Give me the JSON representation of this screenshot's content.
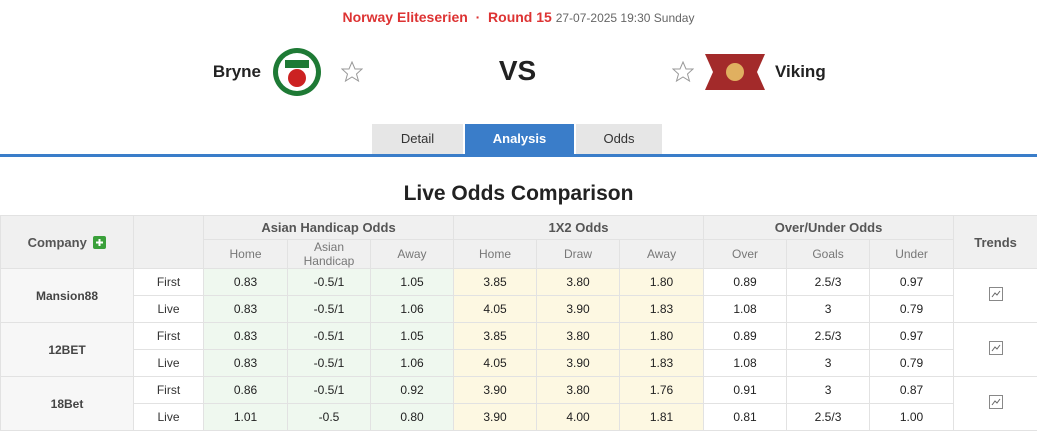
{
  "header": {
    "league": "Norway Eliteserien",
    "round": "Round 15",
    "datetime": "27-07-2025 19:30 Sunday"
  },
  "match": {
    "home": "Bryne",
    "vs": "VS",
    "away": "Viking"
  },
  "tabs": [
    "Detail",
    "Analysis",
    "Odds"
  ],
  "section_title": "Live Odds Comparison",
  "table": {
    "headers": {
      "company": "Company",
      "asian_handicap": "Asian Handicap Odds",
      "x12": "1X2 Odds",
      "over_under": "Over/Under Odds",
      "trends": "Trends"
    },
    "subheaders": [
      "Home",
      "Asian Handicap",
      "Away",
      "Home",
      "Draw",
      "Away",
      "Over",
      "Goals",
      "Under"
    ],
    "rows": [
      {
        "company": "Mansion88",
        "lines": [
          {
            "label": "First",
            "values": [
              "0.83",
              "-0.5/1",
              "1.05",
              "3.85",
              "3.80",
              "1.80",
              "0.89",
              "2.5/3",
              "0.97"
            ]
          },
          {
            "label": "Live",
            "values": [
              "0.83",
              "-0.5/1",
              "1.06",
              "4.05",
              "3.90",
              "1.83",
              "1.08",
              "3",
              "0.79"
            ]
          }
        ]
      },
      {
        "company": "12BET",
        "lines": [
          {
            "label": "First",
            "values": [
              "0.83",
              "-0.5/1",
              "1.05",
              "3.85",
              "3.80",
              "1.80",
              "0.89",
              "2.5/3",
              "0.97"
            ]
          },
          {
            "label": "Live",
            "values": [
              "0.83",
              "-0.5/1",
              "1.06",
              "4.05",
              "3.90",
              "1.83",
              "1.08",
              "3",
              "0.79"
            ]
          }
        ]
      },
      {
        "company": "18Bet",
        "lines": [
          {
            "label": "First",
            "values": [
              "0.86",
              "-0.5/1",
              "0.92",
              "3.90",
              "3.80",
              "1.76",
              "0.91",
              "3",
              "0.87"
            ]
          },
          {
            "label": "Live",
            "values": [
              "1.01",
              "-0.5",
              "0.80",
              "3.90",
              "4.00",
              "1.81",
              "0.81",
              "2.5/3",
              "1.00"
            ]
          }
        ]
      }
    ]
  }
}
